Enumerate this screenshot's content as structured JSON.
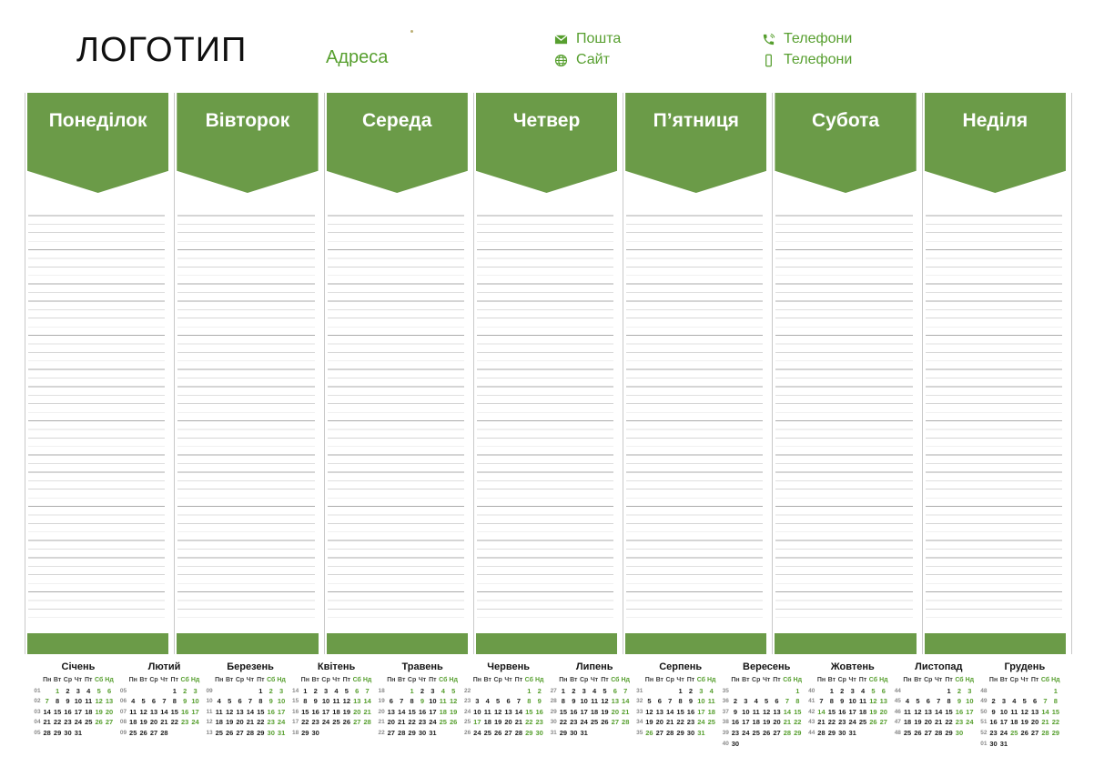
{
  "colors": {
    "accent": "#579f2f",
    "banner_green": "#6b9b48",
    "separator_gray": "#c9c9c9",
    "line_dark": "#ababab",
    "line_light": "#e0e0e0"
  },
  "header": {
    "logo": "ЛОГОТИП",
    "address": "Адреса",
    "contacts": [
      {
        "icon": "mail-icon",
        "label": "Пошта"
      },
      {
        "icon": "globe-icon",
        "label": "Сайт"
      },
      {
        "icon": "phone-icon",
        "label": "Телефони"
      },
      {
        "icon": "mobile-icon",
        "label": "Телефони"
      }
    ]
  },
  "week": {
    "days": [
      "Понеділок",
      "Вівторок",
      "Середа",
      "Четвер",
      "П’ятниця",
      "Субота",
      "Неділя"
    ]
  },
  "calendar": {
    "weekday_header": [
      "Пн",
      "Вт",
      "Ср",
      "Чт",
      "Пт",
      "Сб",
      "Нд"
    ],
    "months": [
      {
        "name": "Січень",
        "weeks": [
          {
            "n": "01",
            "d": [
              "",
              "*1",
              "2",
              "3",
              "4",
              "*5",
              "*6"
            ]
          },
          {
            "n": "02",
            "d": [
              "*7",
              "8",
              "9",
              "10",
              "11",
              "*12",
              "*13"
            ]
          },
          {
            "n": "03",
            "d": [
              "14",
              "15",
              "16",
              "17",
              "18",
              "*19",
              "*20"
            ]
          },
          {
            "n": "04",
            "d": [
              "21",
              "22",
              "23",
              "24",
              "25",
              "*26",
              "*27"
            ]
          },
          {
            "n": "05",
            "d": [
              "28",
              "29",
              "30",
              "31",
              "",
              "",
              ""
            ]
          }
        ]
      },
      {
        "name": "Лютий",
        "weeks": [
          {
            "n": "05",
            "d": [
              "",
              "",
              "",
              "",
              "1",
              "*2",
              "*3"
            ]
          },
          {
            "n": "06",
            "d": [
              "4",
              "5",
              "6",
              "7",
              "8",
              "*9",
              "*10"
            ]
          },
          {
            "n": "07",
            "d": [
              "11",
              "12",
              "13",
              "14",
              "15",
              "*16",
              "*17"
            ]
          },
          {
            "n": "08",
            "d": [
              "18",
              "19",
              "20",
              "21",
              "22",
              "*23",
              "*24"
            ]
          },
          {
            "n": "09",
            "d": [
              "25",
              "26",
              "27",
              "28",
              "",
              "",
              ""
            ]
          }
        ]
      },
      {
        "name": "Березень",
        "weeks": [
          {
            "n": "09",
            "d": [
              "",
              "",
              "",
              "",
              "1",
              "*2",
              "*3"
            ]
          },
          {
            "n": "10",
            "d": [
              "4",
              "5",
              "6",
              "7",
              "8",
              "*9",
              "*10"
            ]
          },
          {
            "n": "11",
            "d": [
              "11",
              "12",
              "13",
              "14",
              "15",
              "*16",
              "*17"
            ]
          },
          {
            "n": "12",
            "d": [
              "18",
              "19",
              "20",
              "21",
              "22",
              "*23",
              "*24"
            ]
          },
          {
            "n": "13",
            "d": [
              "25",
              "26",
              "27",
              "28",
              "29",
              "*30",
              "*31"
            ]
          }
        ]
      },
      {
        "name": "Квітень",
        "weeks": [
          {
            "n": "14",
            "d": [
              "1",
              "2",
              "3",
              "4",
              "5",
              "*6",
              "*7"
            ]
          },
          {
            "n": "15",
            "d": [
              "8",
              "9",
              "10",
              "11",
              "12",
              "*13",
              "*14"
            ]
          },
          {
            "n": "16",
            "d": [
              "15",
              "16",
              "17",
              "18",
              "19",
              "*20",
              "*21"
            ]
          },
          {
            "n": "17",
            "d": [
              "22",
              "23",
              "24",
              "25",
              "26",
              "*27",
              "*28"
            ]
          },
          {
            "n": "18",
            "d": [
              "29",
              "30",
              "",
              "",
              "",
              "",
              ""
            ]
          }
        ]
      },
      {
        "name": "Травень",
        "weeks": [
          {
            "n": "18",
            "d": [
              "",
              "",
              "*1",
              "2",
              "3",
              "*4",
              "*5"
            ]
          },
          {
            "n": "19",
            "d": [
              "6",
              "7",
              "8",
              "*9",
              "10",
              "*11",
              "*12"
            ]
          },
          {
            "n": "20",
            "d": [
              "13",
              "14",
              "15",
              "16",
              "17",
              "*18",
              "*19"
            ]
          },
          {
            "n": "21",
            "d": [
              "20",
              "21",
              "22",
              "23",
              "24",
              "*25",
              "*26"
            ]
          },
          {
            "n": "22",
            "d": [
              "27",
              "28",
              "29",
              "30",
              "31",
              "",
              ""
            ]
          }
        ]
      },
      {
        "name": "Червень",
        "weeks": [
          {
            "n": "22",
            "d": [
              "",
              "",
              "",
              "",
              "",
              "*1",
              "*2"
            ]
          },
          {
            "n": "23",
            "d": [
              "3",
              "4",
              "5",
              "6",
              "7",
              "*8",
              "*9"
            ]
          },
          {
            "n": "24",
            "d": [
              "10",
              "11",
              "12",
              "13",
              "14",
              "*15",
              "*16"
            ]
          },
          {
            "n": "25",
            "d": [
              "*17",
              "18",
              "19",
              "20",
              "21",
              "*22",
              "*23"
            ]
          },
          {
            "n": "26",
            "d": [
              "24",
              "25",
              "26",
              "27",
              "28",
              "*29",
              "*30"
            ]
          }
        ]
      },
      {
        "name": "Липень",
        "weeks": [
          {
            "n": "27",
            "d": [
              "1",
              "2",
              "3",
              "4",
              "5",
              "*6",
              "*7"
            ]
          },
          {
            "n": "28",
            "d": [
              "8",
              "9",
              "10",
              "11",
              "12",
              "*13",
              "*14"
            ]
          },
          {
            "n": "29",
            "d": [
              "15",
              "16",
              "17",
              "18",
              "19",
              "*20",
              "*21"
            ]
          },
          {
            "n": "30",
            "d": [
              "22",
              "23",
              "24",
              "25",
              "26",
              "*27",
              "*28"
            ]
          },
          {
            "n": "31",
            "d": [
              "29",
              "30",
              "31",
              "",
              "",
              "",
              ""
            ]
          }
        ]
      },
      {
        "name": "Серпень",
        "weeks": [
          {
            "n": "31",
            "d": [
              "",
              "",
              "",
              "1",
              "2",
              "*3",
              "*4"
            ]
          },
          {
            "n": "32",
            "d": [
              "5",
              "6",
              "7",
              "8",
              "9",
              "*10",
              "*11"
            ]
          },
          {
            "n": "33",
            "d": [
              "12",
              "13",
              "14",
              "15",
              "16",
              "*17",
              "*18"
            ]
          },
          {
            "n": "34",
            "d": [
              "19",
              "20",
              "21",
              "22",
              "23",
              "*24",
              "*25"
            ]
          },
          {
            "n": "35",
            "d": [
              "*26",
              "27",
              "28",
              "29",
              "30",
              "*31",
              ""
            ]
          }
        ]
      },
      {
        "name": "Вересень",
        "weeks": [
          {
            "n": "35",
            "d": [
              "",
              "",
              "",
              "",
              "",
              "",
              "*1"
            ]
          },
          {
            "n": "36",
            "d": [
              "2",
              "3",
              "4",
              "5",
              "6",
              "*7",
              "*8"
            ]
          },
          {
            "n": "37",
            "d": [
              "9",
              "10",
              "11",
              "12",
              "13",
              "*14",
              "*15"
            ]
          },
          {
            "n": "38",
            "d": [
              "16",
              "17",
              "18",
              "19",
              "20",
              "*21",
              "*22"
            ]
          },
          {
            "n": "39",
            "d": [
              "23",
              "24",
              "25",
              "26",
              "27",
              "*28",
              "*29"
            ]
          },
          {
            "n": "40",
            "d": [
              "30",
              "",
              "",
              "",
              "",
              "",
              ""
            ]
          }
        ]
      },
      {
        "name": "Жовтень",
        "weeks": [
          {
            "n": "40",
            "d": [
              "",
              "1",
              "2",
              "3",
              "4",
              "*5",
              "*6"
            ]
          },
          {
            "n": "41",
            "d": [
              "7",
              "8",
              "9",
              "10",
              "11",
              "*12",
              "*13"
            ]
          },
          {
            "n": "42",
            "d": [
              "*14",
              "15",
              "16",
              "17",
              "18",
              "*19",
              "*20"
            ]
          },
          {
            "n": "43",
            "d": [
              "21",
              "22",
              "23",
              "24",
              "25",
              "*26",
              "*27"
            ]
          },
          {
            "n": "44",
            "d": [
              "28",
              "29",
              "30",
              "31",
              "",
              "",
              ""
            ]
          }
        ]
      },
      {
        "name": "Листопад",
        "weeks": [
          {
            "n": "44",
            "d": [
              "",
              "",
              "",
              "",
              "1",
              "*2",
              "*3"
            ]
          },
          {
            "n": "45",
            "d": [
              "4",
              "5",
              "6",
              "7",
              "8",
              "*9",
              "*10"
            ]
          },
          {
            "n": "46",
            "d": [
              "11",
              "12",
              "13",
              "14",
              "15",
              "*16",
              "*17"
            ]
          },
          {
            "n": "47",
            "d": [
              "18",
              "19",
              "20",
              "21",
              "22",
              "*23",
              "*24"
            ]
          },
          {
            "n": "48",
            "d": [
              "25",
              "26",
              "27",
              "28",
              "29",
              "*30",
              ""
            ]
          }
        ]
      },
      {
        "name": "Грудень",
        "weeks": [
          {
            "n": "48",
            "d": [
              "",
              "",
              "",
              "",
              "",
              "",
              "*1"
            ]
          },
          {
            "n": "49",
            "d": [
              "2",
              "3",
              "4",
              "5",
              "6",
              "*7",
              "*8"
            ]
          },
          {
            "n": "50",
            "d": [
              "9",
              "10",
              "11",
              "12",
              "13",
              "*14",
              "*15"
            ]
          },
          {
            "n": "51",
            "d": [
              "16",
              "17",
              "18",
              "19",
              "20",
              "*21",
              "*22"
            ]
          },
          {
            "n": "52",
            "d": [
              "23",
              "24",
              "*25",
              "26",
              "27",
              "*28",
              "*29"
            ]
          },
          {
            "n": "01",
            "d": [
              "30",
              "31",
              "",
              "",
              "",
              "",
              ""
            ]
          }
        ]
      }
    ]
  }
}
